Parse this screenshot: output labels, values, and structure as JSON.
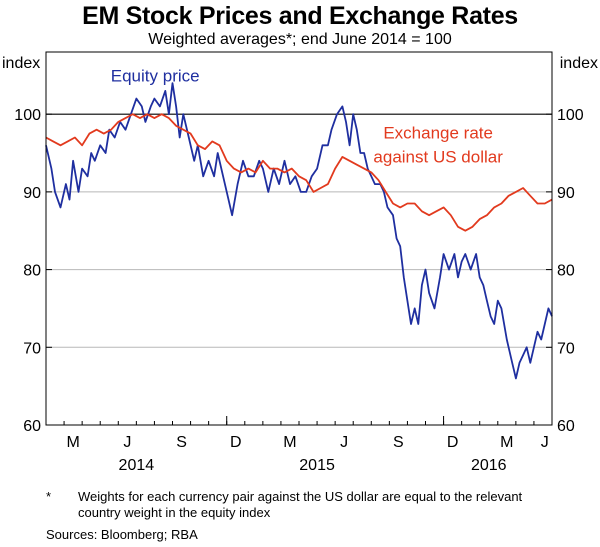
{
  "title": "EM Stock Prices and Exchange Rates",
  "subtitle": "Weighted averages*; end June 2014 = 100",
  "footnote": {
    "marker": "*",
    "text": "Weights for each currency pair against the US dollar are equal to the relevant country weight in the equity index"
  },
  "sources": "Sources:   Bloomberg; RBA",
  "colors": {
    "equity": "#1f2fa0",
    "fx": "#e23a1e",
    "grid": "#b8b8b8",
    "ref": "#000000"
  },
  "chart_data": {
    "type": "line",
    "ylabel_left": "index",
    "ylabel_right": "index",
    "ylim": [
      60,
      108
    ],
    "yticks": [
      60,
      70,
      80,
      90,
      100
    ],
    "reference_line": 100,
    "grid": true,
    "x_unit": "months since 1 Mar 2014",
    "xlim": [
      0,
      28
    ],
    "month_ticks": [
      {
        "label": "M",
        "x": 1.5
      },
      {
        "label": "J",
        "x": 4.5
      },
      {
        "label": "S",
        "x": 7.5
      },
      {
        "label": "D",
        "x": 10.5
      },
      {
        "label": "M",
        "x": 13.5
      },
      {
        "label": "J",
        "x": 16.5
      },
      {
        "label": "S",
        "x": 19.5
      },
      {
        "label": "D",
        "x": 22.5
      },
      {
        "label": "M",
        "x": 25.5
      },
      {
        "label": "J",
        "x": 27.6
      }
    ],
    "year_labels": [
      {
        "label": "2014",
        "x": 5.0
      },
      {
        "label": "2015",
        "x": 15.0
      },
      {
        "label": "2016",
        "x": 24.5
      }
    ],
    "year_separators": [
      10.0,
      22.0
    ],
    "series": [
      {
        "name": "Equity price",
        "label_lines": [
          "Equity price"
        ],
        "x": [
          0,
          0.3,
          0.5,
          0.8,
          1.1,
          1.3,
          1.5,
          1.8,
          2.0,
          2.3,
          2.5,
          2.7,
          3.0,
          3.3,
          3.5,
          3.8,
          4.1,
          4.4,
          4.7,
          5.0,
          5.3,
          5.5,
          5.8,
          6.0,
          6.3,
          6.6,
          6.8,
          7.0,
          7.2,
          7.4,
          7.6,
          7.9,
          8.2,
          8.4,
          8.7,
          9.0,
          9.3,
          9.5,
          9.8,
          10.1,
          10.3,
          10.6,
          10.9,
          11.2,
          11.5,
          11.8,
          12.0,
          12.3,
          12.6,
          12.9,
          13.2,
          13.5,
          13.8,
          14.1,
          14.4,
          14.7,
          15.0,
          15.3,
          15.6,
          15.8,
          16.1,
          16.4,
          16.6,
          16.8,
          17.0,
          17.2,
          17.4,
          17.6,
          17.8,
          18.0,
          18.2,
          18.5,
          18.7,
          18.9,
          19.2,
          19.4,
          19.6,
          19.8,
          20.0,
          20.2,
          20.4,
          20.6,
          20.8,
          21.0,
          21.2,
          21.5,
          21.8,
          22.0,
          22.3,
          22.6,
          22.8,
          23.0,
          23.2,
          23.5,
          23.8,
          24.0,
          24.2,
          24.4,
          24.6,
          24.8,
          25.0,
          25.2,
          25.5,
          25.8,
          26.0,
          26.2,
          26.4,
          26.6,
          26.8,
          27.0,
          27.2,
          27.4,
          27.6,
          27.8,
          28.0
        ],
        "values": [
          96,
          93,
          90,
          88,
          91,
          89,
          94,
          90,
          93,
          92,
          95,
          94,
          96,
          95,
          98,
          97,
          99,
          98,
          100,
          102,
          101,
          99,
          101,
          102,
          101,
          103,
          100,
          104,
          101,
          97,
          100,
          97,
          94,
          96,
          92,
          94,
          92,
          95,
          92,
          89,
          87,
          91,
          94,
          92,
          92,
          94,
          93,
          90,
          93,
          91,
          94,
          91,
          92,
          90,
          90,
          92,
          93,
          96,
          96,
          98,
          100,
          101,
          99,
          96,
          100,
          98,
          95,
          95,
          93,
          92,
          91,
          91,
          90,
          88,
          87,
          84,
          83,
          79,
          76,
          73,
          75,
          73,
          78,
          80,
          77,
          75,
          79,
          82,
          80,
          82,
          79,
          81,
          82,
          80,
          82,
          79,
          78,
          76,
          74,
          73,
          76,
          75,
          71,
          68,
          66,
          68,
          69,
          70,
          68,
          70,
          72,
          71,
          73,
          75,
          74
        ],
        "color": "#1f2fa0"
      },
      {
        "name": "Exchange rate against US dollar",
        "label_lines": [
          "Exchange rate",
          "against US dollar"
        ],
        "x": [
          0,
          0.4,
          0.8,
          1.2,
          1.6,
          2.0,
          2.4,
          2.8,
          3.2,
          3.6,
          4.0,
          4.4,
          4.8,
          5.2,
          5.6,
          6.0,
          6.4,
          6.8,
          7.2,
          7.6,
          8.0,
          8.4,
          8.8,
          9.2,
          9.6,
          10.0,
          10.4,
          10.8,
          11.2,
          11.6,
          12.0,
          12.4,
          12.8,
          13.2,
          13.6,
          14.0,
          14.4,
          14.8,
          15.2,
          15.6,
          16.0,
          16.4,
          16.8,
          17.2,
          17.6,
          18.0,
          18.4,
          18.8,
          19.2,
          19.6,
          20.0,
          20.4,
          20.8,
          21.2,
          21.6,
          22.0,
          22.4,
          22.8,
          23.2,
          23.6,
          24.0,
          24.4,
          24.8,
          25.2,
          25.6,
          26.0,
          26.4,
          26.8,
          27.2,
          27.6,
          28.0
        ],
        "values": [
          97,
          96.5,
          96,
          96.5,
          97,
          96,
          97.5,
          98,
          97.5,
          98,
          99,
          99.5,
          100,
          99.5,
          100,
          99.5,
          100,
          99.5,
          98.5,
          98,
          97.5,
          96,
          95.5,
          96.5,
          96,
          94,
          93,
          92.5,
          93,
          92.5,
          94,
          93,
          93,
          92.5,
          93,
          92,
          91.5,
          90,
          90.5,
          91,
          93,
          94.5,
          94,
          93.5,
          93,
          92.5,
          91.5,
          90,
          88.5,
          88,
          88.5,
          88.5,
          87.5,
          87,
          87.5,
          88,
          87,
          85.5,
          85,
          85.5,
          86.5,
          87,
          88,
          88.5,
          89.5,
          90,
          90.5,
          89.5,
          88.5,
          88.5,
          89
        ],
        "color": "#e23a1e"
      }
    ]
  }
}
